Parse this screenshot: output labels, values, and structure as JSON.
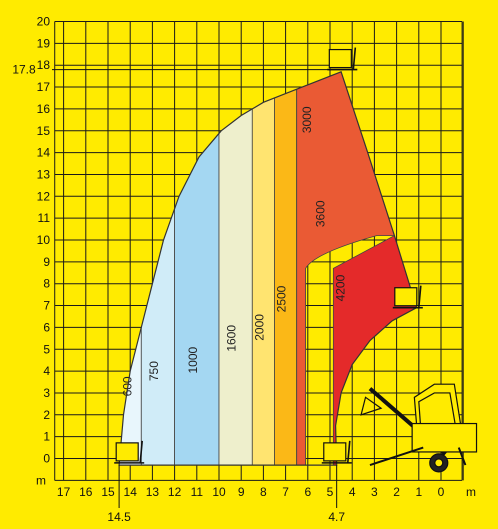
{
  "chart_data": {
    "type": "area",
    "title": "",
    "x_axis": {
      "unit": "m",
      "range": [
        17,
        0
      ],
      "reversed": true,
      "ticks": [
        17,
        16,
        15,
        14,
        13,
        12,
        11,
        10,
        9,
        8,
        7,
        6,
        5,
        4,
        3,
        2,
        1,
        0
      ],
      "tick_labels": [
        "17",
        "16",
        "15",
        "14",
        "13",
        "12",
        "11",
        "10",
        "9",
        "8",
        "7",
        "6",
        "5",
        "4",
        "3",
        "2",
        "1",
        "0"
      ]
    },
    "y_axis": {
      "unit": "m",
      "range": [
        -1,
        20
      ],
      "ticks": [
        0,
        1,
        2,
        3,
        4,
        5,
        6,
        7,
        8,
        9,
        10,
        11,
        12,
        13,
        14,
        15,
        16,
        17,
        18,
        19,
        20
      ],
      "tick_labels": [
        "0",
        "1",
        "2",
        "3",
        "4",
        "5",
        "6",
        "7",
        "8",
        "9",
        "10",
        "11",
        "12",
        "13",
        "14",
        "15",
        "16",
        "17",
        "18",
        "19",
        "20"
      ]
    },
    "grid": true,
    "callouts": {
      "max_height": {
        "value": 17.8,
        "label": "17.8"
      },
      "max_reach": {
        "value": 14.5,
        "label": "14.5"
      },
      "min_reach": {
        "value": 4.7,
        "label": "4.7"
      }
    },
    "boom_outline": {
      "outer_arc": [
        [
          14.5,
          -0.3
        ],
        [
          14.3,
          2
        ],
        [
          14,
          4
        ],
        [
          13.5,
          6
        ],
        [
          13,
          8
        ],
        [
          12.5,
          10
        ],
        [
          11.8,
          12
        ],
        [
          10.9,
          13.8
        ],
        [
          9.9,
          15
        ],
        [
          9,
          15.7
        ],
        [
          8,
          16.3
        ],
        [
          6.5,
          16.9
        ],
        [
          4.5,
          17.7
        ]
      ],
      "tip_edge": [
        [
          4.5,
          17.7
        ],
        [
          3.3,
          14
        ],
        [
          2.1,
          10.2
        ],
        [
          1.1,
          6.9
        ]
      ],
      "inner_arc": [
        [
          1.1,
          6.9
        ],
        [
          2.2,
          6.3
        ],
        [
          3.2,
          5.4
        ],
        [
          4,
          4.3
        ],
        [
          4.5,
          3
        ],
        [
          4.75,
          1.5
        ],
        [
          4.7,
          -0.3
        ]
      ]
    },
    "load_zones": [
      {
        "capacity": "600",
        "label": "600",
        "x_band": [
          13.5,
          14.5
        ],
        "color": "#e8f6fc"
      },
      {
        "capacity": "750",
        "label": "750",
        "x_band": [
          12,
          13.5
        ],
        "color": "#d0ecf8"
      },
      {
        "capacity": "1000",
        "label": "1000",
        "x_band": [
          10,
          12
        ],
        "color": "#a4d7f2"
      },
      {
        "capacity": "1600",
        "label": "1600",
        "x_band": [
          8.5,
          10
        ],
        "color": "#eeefcc"
      },
      {
        "capacity": "2000",
        "label": "2000",
        "x_band": [
          7.5,
          8.5
        ],
        "color": "#ffe470"
      },
      {
        "capacity": "2500",
        "label": "2500",
        "x_band": [
          6.5,
          7.5
        ],
        "color": "#fbb817"
      },
      {
        "capacity": "3000",
        "label": "3000",
        "y_min_at_left": 13,
        "y_min_at_right": 14,
        "color": "#f08228"
      },
      {
        "capacity": "3600",
        "label": "3600",
        "y_min_at_left": 8.7,
        "y_min_at_right": 10.2,
        "color": "#ea5a34"
      },
      {
        "capacity": "4200",
        "label": "4200",
        "y_min_at_left": 0,
        "y_min_at_right": 0,
        "color": "#e42a2a"
      }
    ]
  }
}
